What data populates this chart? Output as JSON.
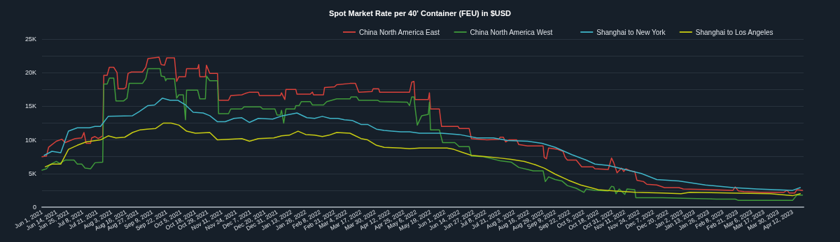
{
  "chart_data": {
    "type": "line",
    "title": "Spot Market Rate per 40' Container (FEU) in $USD",
    "xlim": [
      "2021-06-01",
      "2023-04-22"
    ],
    "xticks": [
      {
        "value": "2021-06-01",
        "label": "Jun 1, 2021"
      },
      {
        "value": "2021-06-14",
        "label": "Jun 14, 2021"
      },
      {
        "value": "2021-06-25",
        "label": "Jun 25, 2021"
      },
      {
        "value": "2021-07-08",
        "label": "Jul 8, 2021"
      },
      {
        "value": "2021-07-21",
        "label": "Jul 21, 2021"
      },
      {
        "value": "2021-08-03",
        "label": "Aug 3, 2021"
      },
      {
        "value": "2021-08-16",
        "label": "Aug 16, 2021"
      },
      {
        "value": "2021-08-27",
        "label": "Aug 27, 2021"
      },
      {
        "value": "2021-09-09",
        "label": "Sep 9, 2021"
      },
      {
        "value": "2021-09-22",
        "label": "Sep 22, 2021"
      },
      {
        "value": "2021-10-05",
        "label": "Oct 5, 2021"
      },
      {
        "value": "2021-10-18",
        "label": "Oct 18, 2021"
      },
      {
        "value": "2021-10-29",
        "label": "Oct 29, 2021"
      },
      {
        "value": "2021-11-11",
        "label": "Nov 11, 2021"
      },
      {
        "value": "2021-11-24",
        "label": "Nov 24, 2021"
      },
      {
        "value": "2021-12-07",
        "label": "Dec 7, 2021"
      },
      {
        "value": "2021-12-20",
        "label": "Dec 20, 2021"
      },
      {
        "value": "2021-12-31",
        "label": "Dec 31, 2021"
      },
      {
        "value": "2022-01-13",
        "label": "Jan 13, 2022"
      },
      {
        "value": "2022-01-26",
        "label": "Jan 26, 2022"
      },
      {
        "value": "2022-02-08",
        "label": "Feb 8, 2022"
      },
      {
        "value": "2022-02-21",
        "label": "Feb 21, 2022"
      },
      {
        "value": "2022-03-04",
        "label": "Mar 4, 2022"
      },
      {
        "value": "2022-03-17",
        "label": "Mar 17, 2022"
      },
      {
        "value": "2022-03-30",
        "label": "Mar 30, 2022"
      },
      {
        "value": "2022-04-12",
        "label": "Apr 12, 2022"
      },
      {
        "value": "2022-04-25",
        "label": "Apr 25, 2022"
      },
      {
        "value": "2022-05-06",
        "label": "May 6, 2022"
      },
      {
        "value": "2022-05-19",
        "label": "May 19, 2022"
      },
      {
        "value": "2022-06-01",
        "label": "Jun 1, 2022"
      },
      {
        "value": "2022-06-14",
        "label": "Jun 14, 2022"
      },
      {
        "value": "2022-06-27",
        "label": "Jun 27, 2022"
      },
      {
        "value": "2022-07-08",
        "label": "Jul 8, 2022"
      },
      {
        "value": "2022-07-21",
        "label": "Jul 21, 2022"
      },
      {
        "value": "2022-08-03",
        "label": "Aug 3, 2022"
      },
      {
        "value": "2022-08-16",
        "label": "Aug 16, 2022"
      },
      {
        "value": "2022-08-29",
        "label": "Aug 29, 2022"
      },
      {
        "value": "2022-09-09",
        "label": "Sep 9, 2022"
      },
      {
        "value": "2022-09-22",
        "label": "Sep 22, 2022"
      },
      {
        "value": "2022-10-05",
        "label": "Oct 5, 2022"
      },
      {
        "value": "2022-10-18",
        "label": "Oct 18, 2022"
      },
      {
        "value": "2022-10-31",
        "label": "Oct 31, 2022"
      },
      {
        "value": "2022-11-11",
        "label": "Nov 11, 2022"
      },
      {
        "value": "2022-11-24",
        "label": "Nov 24, 2022"
      },
      {
        "value": "2022-12-07",
        "label": "Dec 7, 2022"
      },
      {
        "value": "2022-12-20",
        "label": "Dec 20, 2022"
      },
      {
        "value": "2023-01-02",
        "label": "Jan 2, 2023"
      },
      {
        "value": "2023-01-13",
        "label": "Jan 13, 2023"
      },
      {
        "value": "2023-01-26",
        "label": "Jan 26, 2023"
      },
      {
        "value": "2023-02-08",
        "label": "Feb 8, 2023"
      },
      {
        "value": "2023-02-21",
        "label": "Feb 21, 2023"
      },
      {
        "value": "2023-03-06",
        "label": "Mar 6, 2023"
      },
      {
        "value": "2023-03-17",
        "label": "Mar 17, 2023"
      },
      {
        "value": "2023-03-30",
        "label": "Mar 30, 2023"
      },
      {
        "value": "2023-04-12",
        "label": "Apr 12, 2023"
      }
    ],
    "ylim": [
      0,
      25000
    ],
    "yticks": [
      0,
      {
        "value": 2500,
        "label": null
      },
      {
        "value": 5000,
        "label": "5K"
      },
      {
        "value": 7500,
        "label": null
      },
      {
        "value": 10000,
        "label": "10K"
      },
      {
        "value": 12500,
        "label": null
      },
      {
        "value": 15000,
        "label": "15K"
      },
      {
        "value": 17500,
        "label": null
      },
      {
        "value": 20000,
        "label": "20K"
      },
      {
        "value": 22500,
        "label": null
      },
      {
        "value": 25000,
        "label": "25K"
      }
    ],
    "grid": "y",
    "legend": "top",
    "marker": "none",
    "line_style": "solid",
    "series": [
      {
        "name": "China North America East",
        "color": "#d9413a",
        "x": [
          "2021-06-01",
          "2021-06-05",
          "2021-06-07",
          "2021-06-10",
          "2021-06-14",
          "2021-06-19",
          "2021-06-22",
          "2021-06-25",
          "2021-07-01",
          "2021-07-07",
          "2021-07-09",
          "2021-07-11",
          "2021-07-15",
          "2021-07-16",
          "2021-07-19",
          "2021-07-22",
          "2021-07-26",
          "2021-07-27",
          "2021-07-30",
          "2021-08-01",
          "2021-08-05",
          "2021-08-08",
          "2021-08-09",
          "2021-08-14",
          "2021-08-16",
          "2021-08-18",
          "2021-08-21",
          "2021-08-31",
          "2021-09-03",
          "2021-09-05",
          "2021-09-15",
          "2021-09-17",
          "2021-09-20",
          "2021-09-22",
          "2021-09-29",
          "2021-10-01",
          "2021-10-03",
          "2021-10-09",
          "2021-10-10",
          "2021-10-20",
          "2021-10-21",
          "2021-10-22",
          "2021-10-27",
          "2021-10-28",
          "2021-10-31",
          "2021-11-07",
          "2021-11-08",
          "2021-11-17",
          "2021-11-19",
          "2021-11-29",
          "2021-12-02",
          "2021-12-06",
          "2021-12-14",
          "2021-12-15",
          "2022-01-03",
          "2022-01-04",
          "2022-01-07",
          "2022-01-08",
          "2022-01-17",
          "2022-01-18",
          "2022-01-30",
          "2022-02-01",
          "2022-02-02",
          "2022-02-11",
          "2022-02-12",
          "2022-02-21",
          "2022-02-23",
          "2022-03-07",
          "2022-03-12",
          "2022-03-15",
          "2022-03-27",
          "2022-03-28",
          "2022-04-02",
          "2022-04-03",
          "2022-04-30",
          "2022-05-02",
          "2022-05-04",
          "2022-05-05",
          "2022-05-17",
          "2022-05-18",
          "2022-05-19",
          "2022-05-27",
          "2022-05-29",
          "2022-06-13",
          "2022-06-14",
          "2022-06-23",
          "2022-06-25",
          "2022-07-09",
          "2022-07-20",
          "2022-07-21",
          "2022-07-24",
          "2022-07-26",
          "2022-07-29",
          "2022-08-05",
          "2022-08-07",
          "2022-08-15",
          "2022-08-29",
          "2022-08-30",
          "2022-09-01",
          "2022-09-03",
          "2022-09-11",
          "2022-09-16",
          "2022-09-18",
          "2022-09-20",
          "2022-09-28",
          "2022-10-03",
          "2022-10-13",
          "2022-10-15",
          "2022-10-27",
          "2022-10-30",
          "2022-11-01",
          "2022-11-04",
          "2022-11-08",
          "2022-11-10",
          "2022-11-12",
          "2022-11-16",
          "2022-11-20",
          "2022-11-22",
          "2022-11-28",
          "2022-12-01",
          "2022-12-10",
          "2022-12-17",
          "2022-12-30",
          "2023-01-03",
          "2023-01-28",
          "2023-02-17",
          "2023-02-19",
          "2023-02-22",
          "2023-02-27",
          "2023-03-14",
          "2023-04-04",
          "2023-04-07",
          "2023-04-09",
          "2023-04-14",
          "2023-04-16",
          "2023-04-21"
        ],
        "values": [
          7500,
          7600,
          8900,
          9300,
          9800,
          10100,
          9600,
          9800,
          10200,
          10300,
          11100,
          9500,
          9500,
          10300,
          10500,
          10200,
          10600,
          19600,
          19600,
          20800,
          20800,
          20000,
          17600,
          17600,
          17800,
          19900,
          20100,
          20100,
          20800,
          22100,
          22300,
          21200,
          21100,
          22200,
          22200,
          18700,
          19400,
          19400,
          20600,
          20600,
          21200,
          19400,
          19400,
          21100,
          19900,
          19900,
          15900,
          15900,
          16600,
          16700,
          16900,
          17100,
          17100,
          16600,
          16600,
          17000,
          16000,
          17500,
          17500,
          16800,
          16800,
          17100,
          16700,
          16700,
          17800,
          17900,
          18200,
          18400,
          18400,
          17100,
          17200,
          17600,
          17600,
          17100,
          17100,
          18600,
          18700,
          16000,
          16000,
          17000,
          14600,
          14600,
          12000,
          12000,
          11700,
          11700,
          10200,
          10000,
          10100,
          10400,
          10400,
          9700,
          10000,
          10000,
          9300,
          9100,
          9100,
          7400,
          7200,
          8800,
          8600,
          8300,
          7400,
          7000,
          7000,
          6000,
          6000,
          5700,
          5600,
          7300,
          6600,
          5100,
          5800,
          5300,
          5700,
          5400,
          5300,
          4000,
          3800,
          3400,
          3300,
          2900,
          2900,
          2700,
          2600,
          2500,
          3000,
          2400,
          2300,
          2200,
          2200,
          2500,
          2100,
          2100,
          2600,
          2500
        ]
      },
      {
        "name": "China North America West",
        "color": "#3f9a3a",
        "x": [
          "2021-06-01",
          "2021-06-05",
          "2021-06-08",
          "2021-06-14",
          "2021-06-17",
          "2021-06-22",
          "2021-06-30",
          "2021-07-03",
          "2021-07-07",
          "2021-07-10",
          "2021-07-15",
          "2021-07-19",
          "2021-07-26",
          "2021-07-27",
          "2021-07-30",
          "2021-08-01",
          "2021-08-05",
          "2021-08-07",
          "2021-08-14",
          "2021-08-17",
          "2021-08-19",
          "2021-08-31",
          "2021-09-03",
          "2021-09-05",
          "2021-09-16",
          "2021-09-17",
          "2021-09-20",
          "2021-09-21",
          "2021-09-22",
          "2021-09-29",
          "2021-10-01",
          "2021-10-03",
          "2021-10-07",
          "2021-10-09",
          "2021-10-10",
          "2021-10-20",
          "2021-10-22",
          "2021-10-27",
          "2021-10-28",
          "2021-10-31",
          "2021-11-07",
          "2021-11-08",
          "2021-11-17",
          "2021-11-19",
          "2021-11-29",
          "2021-12-01",
          "2021-12-16",
          "2021-12-18",
          "2021-12-29",
          "2021-12-31",
          "2022-01-03",
          "2022-01-04",
          "2022-01-06",
          "2022-01-08",
          "2022-01-16",
          "2022-01-17",
          "2022-01-20",
          "2022-01-22",
          "2022-01-30",
          "2022-02-01",
          "2022-02-11",
          "2022-02-14",
          "2022-02-23",
          "2022-03-07",
          "2022-03-08",
          "2022-03-13",
          "2022-03-15",
          "2022-04-01",
          "2022-04-03",
          "2022-04-28",
          "2022-04-30",
          "2022-05-02",
          "2022-05-04",
          "2022-05-05",
          "2022-05-07",
          "2022-05-11",
          "2022-05-17",
          "2022-05-18",
          "2022-05-19",
          "2022-05-27",
          "2022-05-30",
          "2022-06-10",
          "2022-06-14",
          "2022-06-23",
          "2022-06-25",
          "2022-07-06",
          "2022-07-11",
          "2022-07-21",
          "2022-07-31",
          "2022-08-07",
          "2022-08-15",
          "2022-08-20",
          "2022-08-29",
          "2022-08-31",
          "2022-09-03",
          "2022-09-09",
          "2022-09-15",
          "2022-09-20",
          "2022-09-28",
          "2022-10-05",
          "2022-10-07",
          "2022-10-15",
          "2022-10-27",
          "2022-10-30",
          "2022-11-01",
          "2022-11-03",
          "2022-11-06",
          "2022-11-11",
          "2022-11-13",
          "2022-11-20",
          "2022-11-21",
          "2022-12-15",
          "2023-01-09",
          "2023-02-02",
          "2023-02-19",
          "2023-02-22",
          "2023-04-12",
          "2023-04-16",
          "2023-04-21"
        ],
        "values": [
          5500,
          5700,
          6300,
          6800,
          6500,
          7000,
          7000,
          6400,
          6400,
          5800,
          5700,
          6600,
          6700,
          18300,
          18300,
          19200,
          19200,
          15800,
          15800,
          16200,
          18400,
          18400,
          19100,
          20600,
          20600,
          19500,
          19400,
          18800,
          19100,
          19100,
          16200,
          16700,
          16700,
          13000,
          17400,
          17400,
          16100,
          16100,
          19500,
          18800,
          18800,
          13900,
          13900,
          14600,
          14600,
          14900,
          14900,
          14600,
          14600,
          13700,
          13700,
          14400,
          12500,
          14600,
          14600,
          15100,
          15100,
          15700,
          15700,
          15200,
          15200,
          15700,
          16100,
          16100,
          16400,
          16400,
          15900,
          15900,
          15700,
          15600,
          15100,
          16400,
          16400,
          14800,
          12200,
          13600,
          13800,
          15600,
          11500,
          11500,
          9600,
          9600,
          9000,
          9000,
          7600,
          7500,
          7300,
          6900,
          6700,
          5900,
          5600,
          5400,
          5400,
          3800,
          4500,
          4100,
          3900,
          3200,
          2800,
          2200,
          2700,
          2500,
          2400,
          3100,
          3000,
          2000,
          2700,
          1900,
          2700,
          2600,
          1400,
          1400,
          1300,
          1200,
          1200,
          1000,
          1000,
          1800,
          1800
        ]
      },
      {
        "name": "Shanghai to New York",
        "color": "#3fb5c8",
        "x": [
          "2021-06-03",
          "2021-06-10",
          "2021-06-18",
          "2021-06-25",
          "2021-07-03",
          "2021-07-14",
          "2021-07-19",
          "2021-07-24",
          "2021-07-31",
          "2021-08-22",
          "2021-08-28",
          "2021-09-05",
          "2021-09-11",
          "2021-09-18",
          "2021-09-25",
          "2021-10-02",
          "2021-10-09",
          "2021-10-16",
          "2021-10-25",
          "2021-10-31",
          "2021-11-07",
          "2021-11-14",
          "2021-11-22",
          "2021-11-29",
          "2021-12-06",
          "2021-12-14",
          "2021-12-27",
          "2022-01-05",
          "2022-01-18",
          "2022-01-27",
          "2022-02-03",
          "2022-02-10",
          "2022-02-17",
          "2022-02-24",
          "2022-03-02",
          "2022-03-09",
          "2022-03-17",
          "2022-03-23",
          "2022-03-31",
          "2022-04-07",
          "2022-04-14",
          "2022-04-22",
          "2022-04-30",
          "2022-05-09",
          "2022-05-29",
          "2022-06-14",
          "2022-06-30",
          "2022-07-15",
          "2022-07-28",
          "2022-08-15",
          "2022-08-28",
          "2022-09-09",
          "2022-09-24",
          "2022-10-07",
          "2022-10-15",
          "2022-10-27",
          "2022-11-11",
          "2022-11-26",
          "2022-12-10",
          "2022-12-30",
          "2023-01-23",
          "2023-02-17",
          "2023-03-11",
          "2023-04-12",
          "2023-04-19"
        ],
        "values": [
          7700,
          8300,
          8100,
          11300,
          11800,
          11800,
          12000,
          12000,
          13500,
          13600,
          14200,
          15100,
          15200,
          16200,
          15900,
          15900,
          15200,
          14100,
          14000,
          13600,
          12700,
          12700,
          13200,
          13300,
          12600,
          13200,
          13100,
          13600,
          14000,
          13300,
          13200,
          13500,
          13200,
          13200,
          13000,
          12900,
          12300,
          12300,
          11600,
          11400,
          11300,
          11200,
          11200,
          11000,
          11000,
          10800,
          10300,
          10300,
          9900,
          9800,
          9500,
          8900,
          7800,
          7000,
          6400,
          6200,
          5600,
          5000,
          4100,
          3900,
          3300,
          2900,
          2700,
          2500,
          2900
        ]
      },
      {
        "name": "Shanghai to Los Angeles",
        "color": "#c8cc12",
        "x": [
          "2021-06-04",
          "2021-06-10",
          "2021-06-18",
          "2021-06-25",
          "2021-07-03",
          "2021-07-11",
          "2021-07-24",
          "2021-07-31",
          "2021-08-07",
          "2021-08-15",
          "2021-08-22",
          "2021-08-29",
          "2021-09-04",
          "2021-09-12",
          "2021-09-19",
          "2021-09-26",
          "2021-10-03",
          "2021-10-10",
          "2021-10-18",
          "2021-10-31",
          "2021-11-07",
          "2021-11-17",
          "2021-11-29",
          "2021-12-06",
          "2021-12-14",
          "2021-12-28",
          "2022-01-04",
          "2022-01-11",
          "2022-01-19",
          "2022-01-26",
          "2022-02-03",
          "2022-02-10",
          "2022-02-16",
          "2022-02-23",
          "2022-03-07",
          "2022-03-17",
          "2022-03-23",
          "2022-03-31",
          "2022-04-07",
          "2022-04-22",
          "2022-04-30",
          "2022-05-09",
          "2022-06-03",
          "2022-06-09",
          "2022-06-16",
          "2022-06-25",
          "2022-07-09",
          "2022-07-21",
          "2022-07-31",
          "2022-08-12",
          "2022-08-22",
          "2022-08-30",
          "2022-09-09",
          "2022-09-21",
          "2022-10-02",
          "2022-10-11",
          "2022-10-18",
          "2022-11-01",
          "2022-11-21",
          "2022-12-15",
          "2023-01-01",
          "2023-01-09",
          "2023-02-14",
          "2023-03-23",
          "2023-04-12",
          "2023-04-19"
        ],
        "values": [
          6000,
          6400,
          6400,
          8600,
          9200,
          9700,
          10000,
          10600,
          10300,
          10400,
          11100,
          11500,
          11600,
          11700,
          12500,
          12500,
          12200,
          11300,
          11000,
          11100,
          10000,
          10100,
          10200,
          9800,
          10200,
          10300,
          10600,
          10700,
          11300,
          10800,
          10700,
          10500,
          10700,
          11100,
          11000,
          10200,
          10000,
          9200,
          8900,
          8800,
          8700,
          8800,
          8800,
          8600,
          8200,
          7700,
          7500,
          7300,
          7100,
          6800,
          6300,
          5800,
          4900,
          4000,
          3300,
          2900,
          2600,
          2400,
          2200,
          2100,
          2000,
          2200,
          2100,
          2000,
          1700,
          2000
        ]
      }
    ]
  }
}
